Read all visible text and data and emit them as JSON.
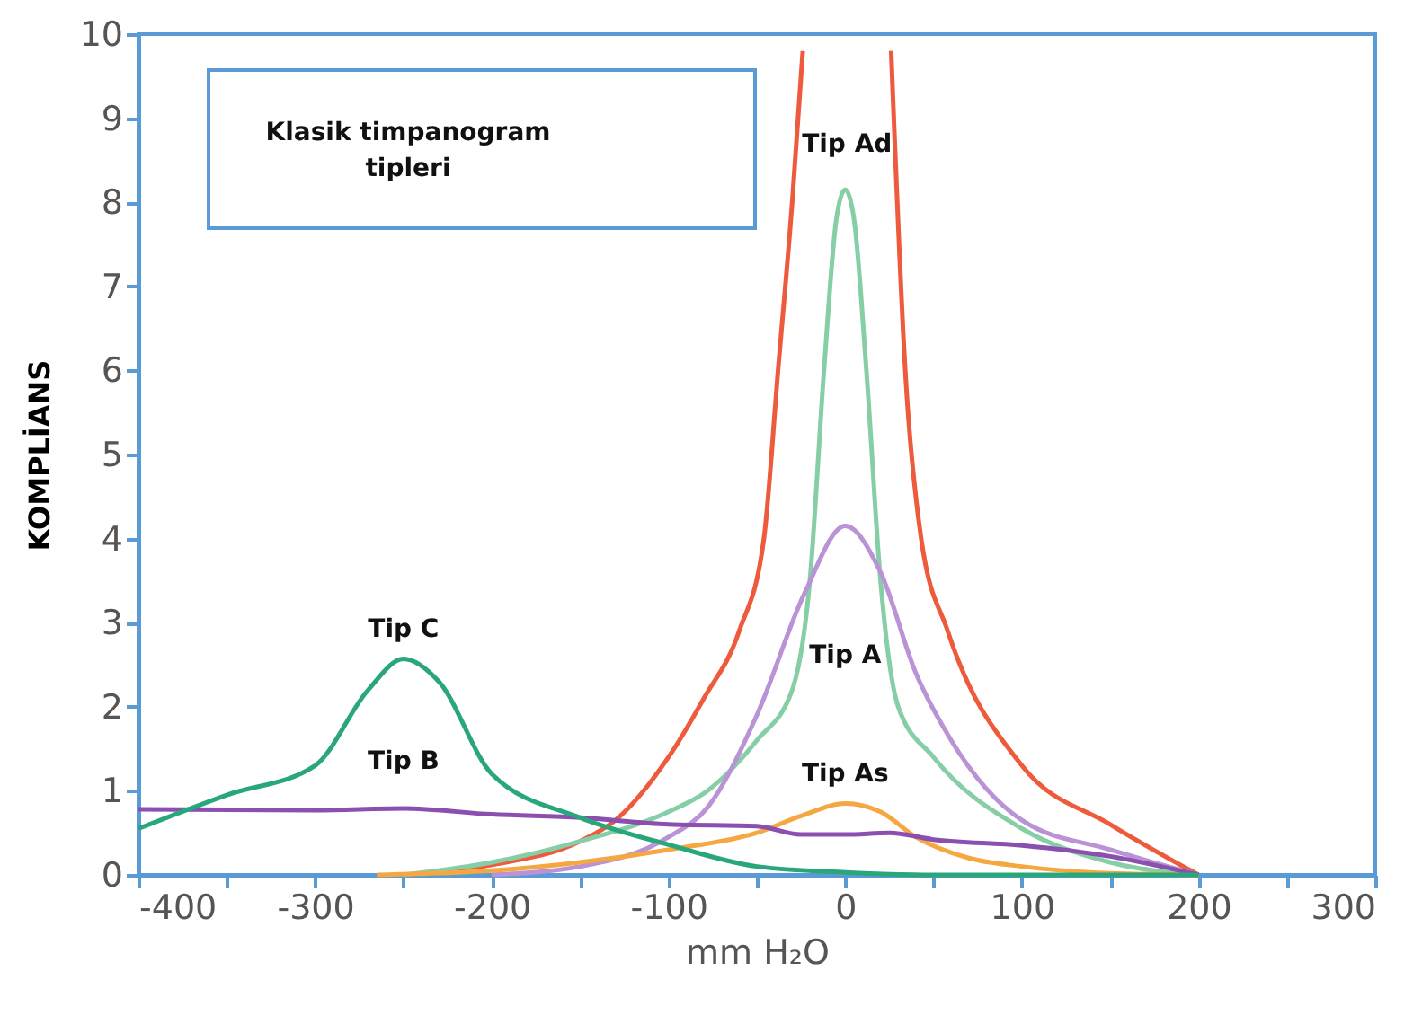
{
  "chart_data": {
    "type": "line",
    "xlabel": "mm H₂O",
    "ylabel": "KOMPLİANS",
    "annotations": [
      "Klasik timpanogram tipleri"
    ],
    "xlim": [
      -400,
      300
    ],
    "ylim": [
      0,
      10
    ],
    "xticks": [
      -400,
      {
        "value": -350,
        "label": null
      },
      -300,
      {
        "value": -250,
        "label": null
      },
      -200,
      {
        "value": -150,
        "label": null
      },
      -100,
      {
        "value": -50,
        "label": null
      },
      0,
      {
        "value": 50,
        "label": null
      },
      100,
      {
        "value": 150,
        "label": null
      },
      200,
      {
        "value": 250,
        "label": null
      },
      300
    ],
    "yticks": [
      0,
      1,
      2,
      3,
      4,
      5,
      6,
      7,
      8,
      9,
      10
    ],
    "grid": false,
    "marker": "none",
    "line_style": "solid",
    "series": [
      {
        "name": "Tip Ad",
        "color": "#ee5a3c",
        "x": [
          -250,
          -200,
          -150,
          -130,
          -100,
          -80,
          -60,
          -46,
          -38,
          -30,
          -24,
          0,
          26,
          34,
          43,
          58,
          100,
          150,
          200
        ],
        "values": [
          0,
          0.12,
          0.4,
          0.65,
          1.4,
          2.1,
          2.9,
          4,
          6,
          8,
          9.8,
          null,
          9.8,
          6,
          4,
          2.9,
          1.3,
          0.6,
          0
        ]
      },
      {
        "color": "#86cfa6",
        "x": [
          -250,
          -200,
          -150,
          -100,
          -78,
          -50,
          -30,
          -20,
          -12,
          -5,
          0,
          5,
          12,
          20,
          30,
          50,
          100,
          150,
          200
        ],
        "values": [
          0,
          0.15,
          0.4,
          0.75,
          1,
          1.6,
          2.2,
          3.5,
          6,
          7.8,
          8.15,
          7.8,
          6,
          3.5,
          2,
          1.4,
          0.55,
          0.15,
          0
        ]
      },
      {
        "name": "Tip A",
        "color": "#b993d6",
        "x": [
          -200,
          -150,
          -100,
          -78,
          -50,
          -23,
          0,
          20,
          40,
          60,
          100,
          150,
          200
        ],
        "values": [
          0,
          0.1,
          0.45,
          0.8,
          1.9,
          3.35,
          4.15,
          3.6,
          2.4,
          1.6,
          0.65,
          0.3,
          0
        ]
      },
      {
        "name": "Tip As",
        "color": "#f5a742",
        "x": [
          -265,
          -200,
          -150,
          -100,
          -50,
          -25,
          0,
          20,
          40,
          70,
          100,
          150,
          200
        ],
        "values": [
          0,
          0.05,
          0.15,
          0.3,
          0.5,
          0.7,
          0.85,
          0.75,
          0.45,
          0.2,
          0.1,
          0.02,
          0
        ]
      },
      {
        "name": "Tip B",
        "color": "#8b4fb0",
        "x": [
          -400,
          -300,
          -250,
          -200,
          -150,
          -100,
          -50,
          -25,
          0,
          25,
          50,
          100,
          150,
          200
        ],
        "values": [
          0.78,
          0.77,
          0.79,
          0.72,
          0.68,
          0.6,
          0.58,
          0.48,
          0.48,
          0.5,
          0.42,
          0.35,
          0.22,
          0
        ]
      },
      {
        "name": "Tip C",
        "color": "#2aa77a",
        "x": [
          -400,
          -350,
          -300,
          -270,
          -250,
          -230,
          -200,
          -150,
          -100,
          -50,
          0,
          50,
          200
        ],
        "values": [
          0.55,
          0.95,
          1.3,
          2.2,
          2.57,
          2.3,
          1.2,
          0.68,
          0.36,
          0.1,
          0.03,
          0,
          0
        ]
      }
    ]
  }
}
